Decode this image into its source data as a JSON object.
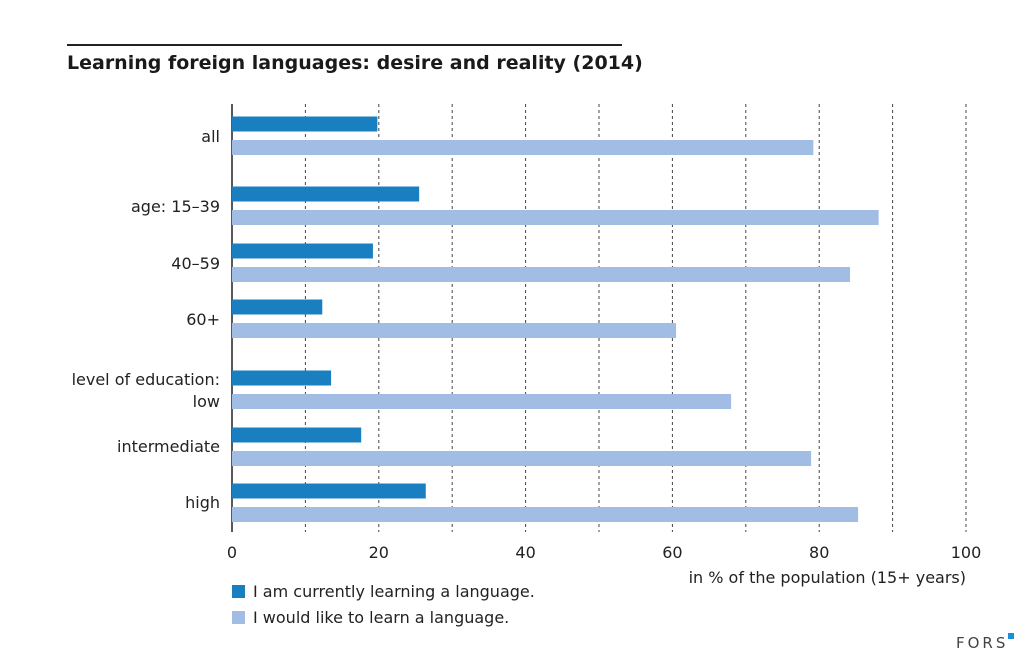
{
  "chart_data": {
    "type": "bar",
    "orientation": "horizontal",
    "title": "Learning foreign languages: desire and reality (2014)",
    "xlabel": "in % of the population (15+ years)",
    "xlim": [
      0,
      100
    ],
    "xticks": [
      0,
      20,
      40,
      60,
      80,
      100
    ],
    "grid": "vertical dashed every 10",
    "categories": [
      "all",
      "age: 15–39",
      "40–59",
      "60+",
      "level of education: low",
      "intermediate",
      "high"
    ],
    "category_lines": [
      [
        "all"
      ],
      [
        "age: 15–39"
      ],
      [
        "40–59"
      ],
      [
        "60+"
      ],
      [
        "level of education:",
        "low"
      ],
      [
        "intermediate"
      ],
      [
        "high"
      ]
    ],
    "series": [
      {
        "name": "I am currently learning a language.",
        "color": "#1a7fc1",
        "values": [
          19.8,
          25.5,
          19.2,
          12.3,
          13.5,
          17.6,
          26.4
        ]
      },
      {
        "name": "I would like to learn a language.",
        "color": "#a2bde4",
        "values": [
          79.2,
          88.1,
          84.2,
          60.5,
          68.0,
          78.9,
          85.3
        ]
      }
    ],
    "legend": "bottom-left"
  },
  "logo": "FORS"
}
